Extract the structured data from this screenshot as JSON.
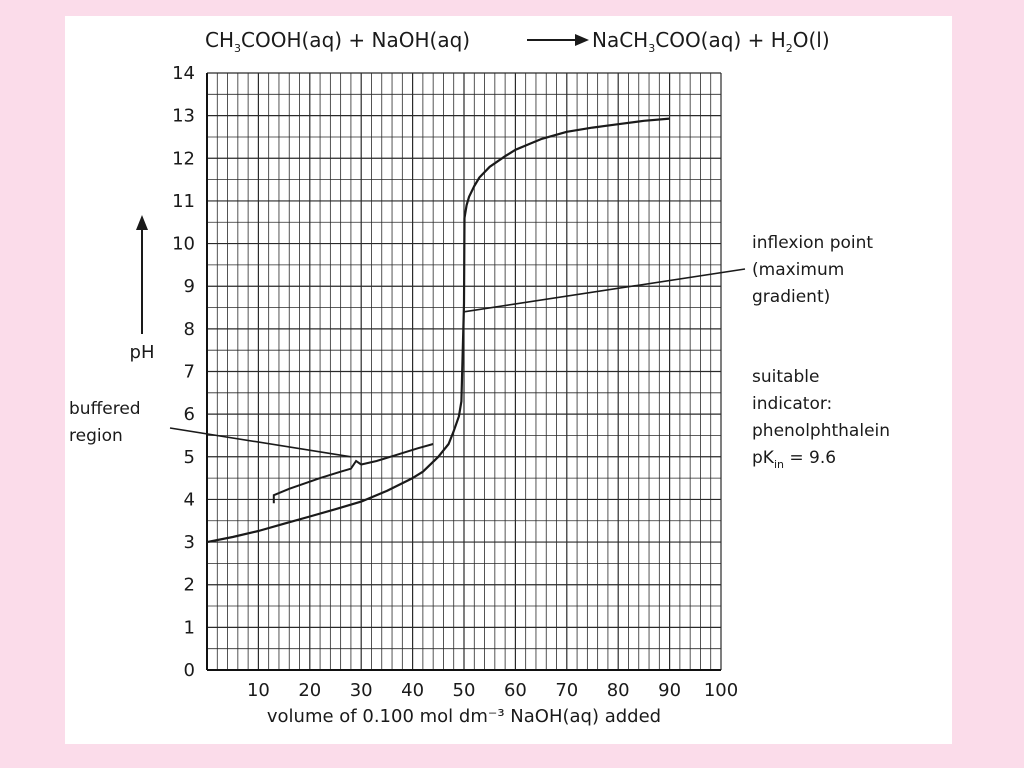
{
  "equation": {
    "reactants": [
      "CH3COOH(aq)",
      "NaOH(aq)"
    ],
    "products": [
      "NaCH3COO(aq)",
      "H2O(l)"
    ]
  },
  "chart_data": {
    "type": "line",
    "title": "CH₃COOH(aq) + NaOH(aq) → NaCH₃COO(aq) + H₂O(l)",
    "xlabel": "volume of 0.100 mol dm⁻³ NaOH(aq) added",
    "ylabel": "pH",
    "xlim": [
      0,
      100
    ],
    "ylim": [
      0,
      14
    ],
    "x_ticks": [
      10,
      20,
      30,
      40,
      50,
      60,
      70,
      80,
      90,
      100
    ],
    "y_ticks": [
      0,
      1,
      2,
      3,
      4,
      5,
      6,
      7,
      8,
      9,
      10,
      11,
      12,
      13,
      14
    ],
    "grid": true,
    "series": [
      {
        "x": [
          0,
          5,
          10,
          15,
          20,
          25,
          30,
          35,
          40,
          42,
          45,
          47,
          48,
          49,
          49.5,
          50,
          50.1,
          50.5,
          51,
          52,
          53,
          55,
          58,
          60,
          63,
          65,
          70,
          75,
          80,
          85,
          90
        ],
        "y": [
          3.0,
          3.12,
          3.26,
          3.43,
          3.6,
          3.77,
          3.95,
          4.2,
          4.5,
          4.65,
          5.0,
          5.3,
          5.6,
          5.95,
          6.3,
          8.6,
          10.6,
          10.9,
          11.1,
          11.35,
          11.55,
          11.8,
          12.05,
          12.2,
          12.35,
          12.45,
          12.62,
          12.72,
          12.8,
          12.88,
          12.93
        ]
      }
    ],
    "annotations": [
      {
        "text": [
          "buffered",
          "region"
        ],
        "points_to": {
          "x": 28,
          "y": 5.0
        }
      },
      {
        "text": [
          "inflexion point",
          "(maximum",
          "gradient)"
        ],
        "points_to": {
          "x": 50,
          "y": 8.4
        }
      },
      {
        "text": [
          "suitable",
          "indicator:",
          "phenolphthalein",
          "pK_in = 9.6"
        ]
      }
    ],
    "buffer_bracket": {
      "x": [
        13,
        16,
        22,
        26,
        28,
        29,
        30,
        33,
        37,
        41,
        44
      ],
      "y": [
        4.1,
        4.25,
        4.5,
        4.65,
        4.72,
        4.9,
        4.82,
        4.9,
        5.05,
        5.2,
        5.3
      ]
    }
  }
}
